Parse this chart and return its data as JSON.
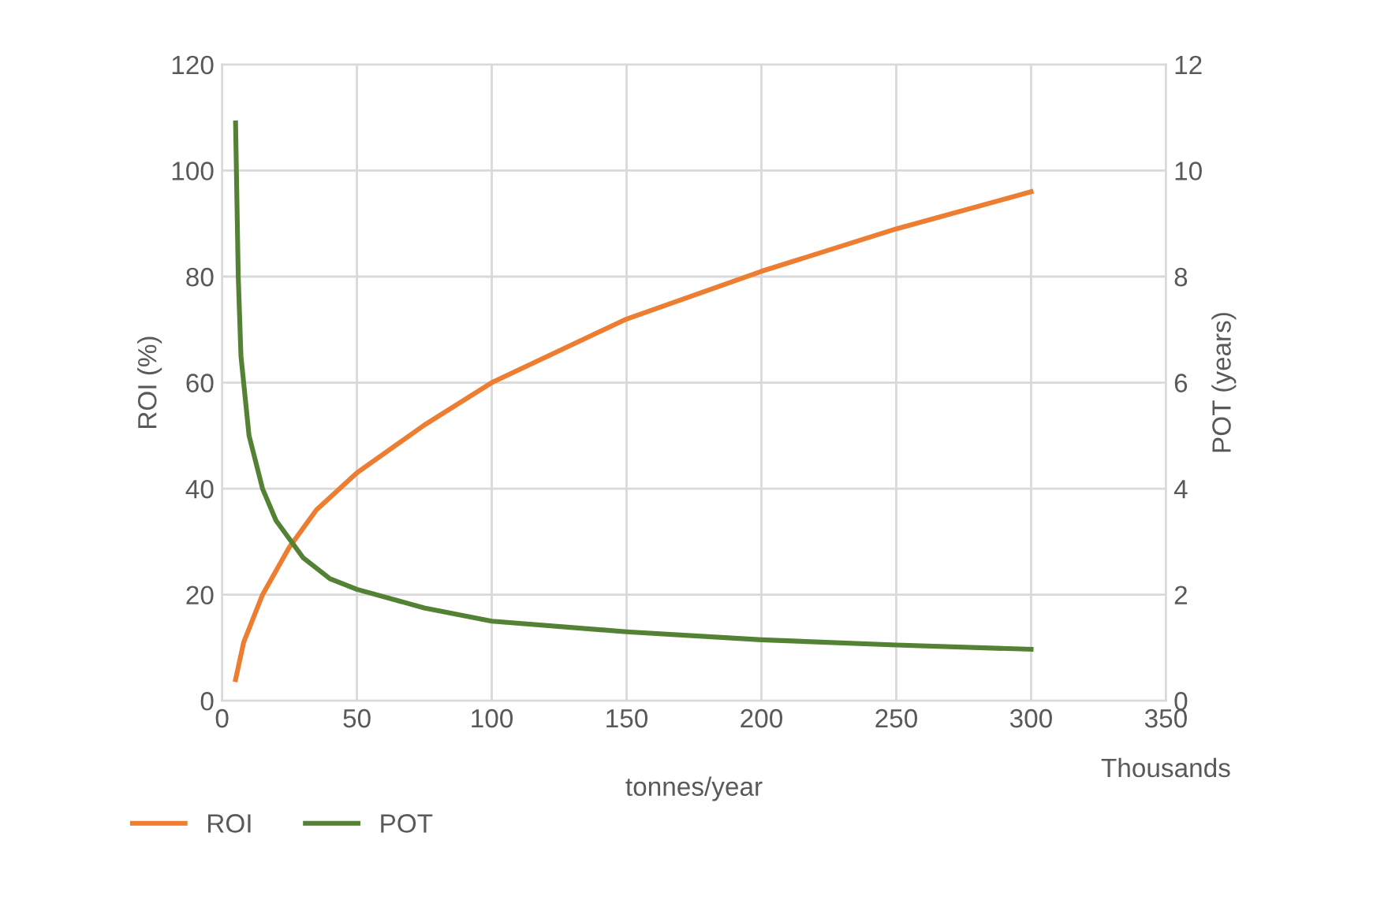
{
  "chart_data": {
    "type": "line",
    "xlabel": "tonnes/year",
    "ylabel": "ROI (%)",
    "y2label": "POT (years)",
    "annotations": [
      "Thousands"
    ],
    "xlim": [
      0,
      350
    ],
    "xticks": [
      0,
      50,
      100,
      150,
      200,
      250,
      300,
      350
    ],
    "ylim": [
      0,
      120
    ],
    "yticks": [
      0,
      20,
      40,
      60,
      80,
      100,
      120
    ],
    "y2lim": [
      0,
      12
    ],
    "y2ticks": [
      0,
      2,
      4,
      6,
      8,
      10,
      12
    ],
    "grid": true,
    "legend": "bottom left",
    "marker": "none",
    "line_style": "solid",
    "series": [
      {
        "name": "ROI",
        "color": "#ed7d31",
        "x": [
          5,
          8,
          15,
          25,
          35,
          50,
          75,
          100,
          150,
          200,
          250,
          300
        ],
        "values": [
          4,
          11,
          20,
          29,
          36,
          43,
          52,
          60,
          72,
          81,
          89,
          96
        ]
      },
      {
        "name": "POT",
        "color": "#548235",
        "axis": "y2",
        "x": [
          5,
          6,
          7,
          10,
          15,
          20,
          30,
          40,
          50,
          75,
          100,
          150,
          200,
          250,
          300
        ],
        "values": [
          10.9,
          8,
          6.5,
          5,
          4,
          3.4,
          2.7,
          2.3,
          2.1,
          1.75,
          1.5,
          1.3,
          1.15,
          1.05,
          0.97
        ]
      }
    ]
  }
}
